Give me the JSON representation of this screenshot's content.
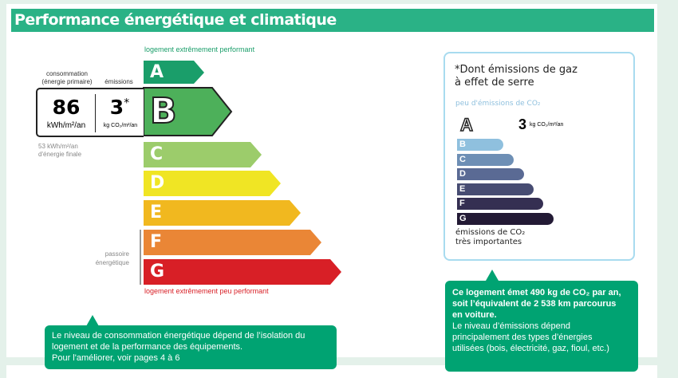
{
  "header": {
    "title": "Performance énergétique et climatique"
  },
  "energy": {
    "top_label": "logement extrêmement performant",
    "bottom_label": "logement extrêmement peu performant",
    "classes": [
      {
        "letter": "A",
        "color": "#1a9e6a"
      },
      {
        "letter": "B",
        "color": "#4db05a"
      },
      {
        "letter": "C",
        "color": "#9ccc6b"
      },
      {
        "letter": "D",
        "color": "#f0e524"
      },
      {
        "letter": "E",
        "color": "#f1b81f"
      },
      {
        "letter": "F",
        "color": "#ea8636"
      },
      {
        "letter": "G",
        "color": "#d81f26"
      }
    ],
    "current_class": "B",
    "consumption_label": "consommation",
    "consumption_sub": "(énergie primaire)",
    "emissions_label": "émissions",
    "consumption_value": "86",
    "consumption_unit": "kWh/m²/an",
    "emissions_value": "3",
    "emissions_star": "*",
    "emissions_unit": "kg CO₂/m²/an",
    "final_energy_1": "53 kWh/m²/an",
    "final_energy_2": "d'énergie finale",
    "passoire_1": "passoire",
    "passoire_2": "énergétique"
  },
  "co2": {
    "note_1": "*Dont émissions de gaz",
    "note_2": "à effet de serre",
    "top_label": "peu d'émissions de CO₂",
    "current_class": "A",
    "value": "3",
    "unit": "kg CO₂/m²/an",
    "classes": [
      {
        "letter": "A",
        "color": "#a6dcf2"
      },
      {
        "letter": "B",
        "color": "#8fc0de"
      },
      {
        "letter": "C",
        "color": "#6e8fb5"
      },
      {
        "letter": "D",
        "color": "#5a6a94"
      },
      {
        "letter": "E",
        "color": "#474c72"
      },
      {
        "letter": "F",
        "color": "#352f52"
      },
      {
        "letter": "G",
        "color": "#231a35"
      }
    ],
    "bottom_label_1": "émissions de CO₂",
    "bottom_label_2": "très importantes"
  },
  "tip_left": {
    "line1": "Le niveau de consommation énergétique dépend de l’isolation du",
    "line2": "logement et de la performance des équipements.",
    "line3": "Pour l'améliorer, voir pages 4 à 6"
  },
  "tip_right": {
    "bold1": "Ce logement émet 490 kg de CO₂ par an,",
    "bold2": "soit l’équivalent de 2 538 km parcourus",
    "bold3": "en voiture.",
    "line4": "Le niveau d’émissions dépend",
    "line5": "principalement des types d’énergies",
    "line6": "utilisées (bois, électricité, gaz, fioul, etc.)"
  }
}
